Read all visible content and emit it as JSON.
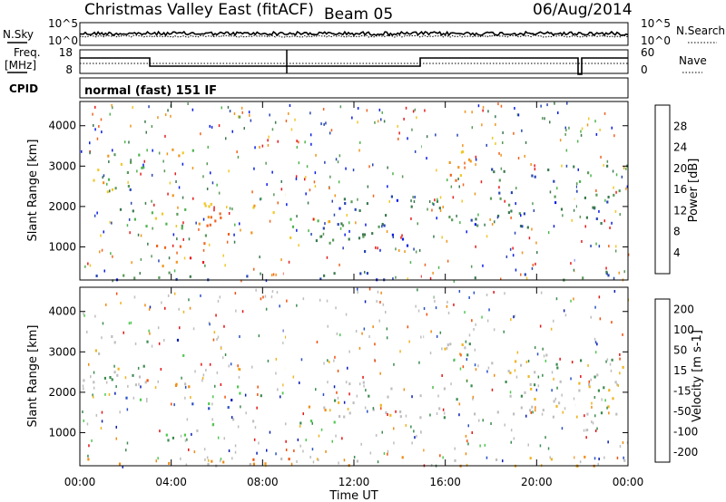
{
  "header": {
    "title": "Christmas Valley East (fitACF)",
    "beam": "Beam 05",
    "date": "06/Aug/2014"
  },
  "noise_panel": {
    "left_label": "N.Sky",
    "right_label": "N.Search",
    "left_ticks": [
      "10^5",
      "10^0"
    ],
    "right_ticks": [
      "10^5",
      "10^0"
    ]
  },
  "freq_panel": {
    "left_label_1": "Freq.",
    "left_label_2": "[MHz]",
    "right_label": "Nave",
    "left_ticks": [
      "18",
      "8"
    ],
    "right_ticks": [
      "60",
      "0"
    ]
  },
  "cpid": {
    "label": "CPID",
    "mode": "normal (fast) 151 IF"
  },
  "colors": {
    "power": [
      "#0a1ee6",
      "#2846b4",
      "#3c7a50",
      "#5a9a5a",
      "#50b450",
      "#f0c828",
      "#f0961e",
      "#f0641e",
      "#e61e1e"
    ],
    "velocity": [
      "#e61414",
      "#f0500a",
      "#f08c14",
      "#f0b41e",
      "#bebebe",
      "#3c8c50",
      "#50c850",
      "#2850c8",
      "#0a1eb4"
    ]
  },
  "chart_data": [
    {
      "type": "heatmap",
      "title": "Power",
      "ylabel": "Slant Range [km]",
      "xlabel": "",
      "ylim": [
        180,
        4600
      ],
      "xlim": [
        0,
        24
      ],
      "yticks": [
        "1000",
        "2000",
        "3000",
        "4000"
      ],
      "colorbar": {
        "label": "Power [dB]",
        "ticks": [
          "4",
          "8",
          "12",
          "16",
          "20",
          "24",
          "28"
        ],
        "range": [
          0,
          32
        ]
      },
      "regions": [
        {
          "x0": 0.0,
          "x1": 2.8,
          "y0": 2300,
          "y1": 3400,
          "level": 0.55
        },
        {
          "x0": 1.2,
          "x1": 2.6,
          "y0": 1600,
          "y1": 2600,
          "level": 0.35
        },
        {
          "x0": 3.0,
          "x1": 5.5,
          "y0": 500,
          "y1": 1200,
          "level": 0.85
        },
        {
          "x0": 2.8,
          "x1": 5.8,
          "y0": 1300,
          "y1": 2400,
          "level": 0.55
        },
        {
          "x0": 5.5,
          "x1": 9.0,
          "y0": 1300,
          "y1": 2100,
          "level": 0.75
        },
        {
          "x0": 9.0,
          "x1": 11.8,
          "y0": 1200,
          "y1": 1900,
          "level": 0.6
        },
        {
          "x0": 4.0,
          "x1": 5.0,
          "y0": 3200,
          "y1": 4000,
          "level": 0.6
        },
        {
          "x0": 9.5,
          "x1": 12.5,
          "y0": 1100,
          "y1": 1700,
          "level": 0.3
        },
        {
          "x0": 12.0,
          "x1": 14.5,
          "y0": 900,
          "y1": 1400,
          "level": 0.2
        },
        {
          "x0": 11.0,
          "x1": 23.5,
          "y0": 1500,
          "y1": 2300,
          "level": 0.25
        },
        {
          "x0": 15.5,
          "x1": 17.5,
          "y0": 2600,
          "y1": 3600,
          "level": 0.65
        },
        {
          "x0": 18.0,
          "x1": 21.0,
          "y0": 2300,
          "y1": 3000,
          "level": 0.25
        },
        {
          "x0": 21.5,
          "x1": 24.0,
          "y0": 2000,
          "y1": 3100,
          "level": 0.3
        },
        {
          "x0": 0.0,
          "x1": 24.0,
          "y0": 200,
          "y1": 420,
          "level": 0.2
        }
      ]
    },
    {
      "type": "heatmap",
      "title": "Velocity",
      "ylabel": "Slant Range [km]",
      "xlabel": "Time UT",
      "ylim": [
        180,
        4600
      ],
      "xlim": [
        0,
        24
      ],
      "yticks": [
        "1000",
        "2000",
        "3000",
        "4000"
      ],
      "xticks": [
        "00:00",
        "04:00",
        "08:00",
        "12:00",
        "16:00",
        "20:00",
        "00:00"
      ],
      "colorbar": {
        "label": "Velocity [m s-1]",
        "ticks": [
          "-200",
          "-100",
          "-50",
          "-15",
          "15",
          "50",
          "100",
          "200"
        ],
        "range": [
          -300,
          300
        ]
      },
      "regions": [
        {
          "x0": 0.0,
          "x1": 3.0,
          "y0": 2200,
          "y1": 3500,
          "kind": "gray"
        },
        {
          "x0": 1.8,
          "x1": 2.8,
          "y0": 1800,
          "y1": 2300,
          "kind": "blue"
        },
        {
          "x0": 3.0,
          "x1": 5.5,
          "y0": 700,
          "y1": 1100,
          "kind": "green"
        },
        {
          "x0": 5.5,
          "x1": 11.5,
          "y0": 1200,
          "y1": 1500,
          "kind": "green"
        },
        {
          "x0": 4.5,
          "x1": 7.5,
          "y0": 1500,
          "y1": 1900,
          "kind": "blue"
        },
        {
          "x0": 6.0,
          "x1": 9.0,
          "y0": 1900,
          "y1": 2200,
          "kind": "green"
        },
        {
          "x0": 2.8,
          "x1": 5.2,
          "y0": 1900,
          "y1": 2400,
          "kind": "orange"
        },
        {
          "x0": 9.5,
          "x1": 11.8,
          "y0": 1500,
          "y1": 1900,
          "kind": "orange"
        },
        {
          "x0": 4.2,
          "x1": 5.0,
          "y0": 2800,
          "y1": 3400,
          "kind": "blue"
        },
        {
          "x0": 11.0,
          "x1": 23.5,
          "y0": 1400,
          "y1": 2300,
          "kind": "gray"
        },
        {
          "x0": 15.5,
          "x1": 17.5,
          "y0": 2700,
          "y1": 3500,
          "kind": "gray"
        },
        {
          "x0": 18.0,
          "x1": 21.0,
          "y0": 2300,
          "y1": 3000,
          "kind": "gray"
        },
        {
          "x0": 21.5,
          "x1": 24.0,
          "y0": 2000,
          "y1": 3000,
          "kind": "gray"
        },
        {
          "x0": 0.0,
          "x1": 24.0,
          "y0": 200,
          "y1": 450,
          "kind": "orange"
        }
      ]
    }
  ]
}
